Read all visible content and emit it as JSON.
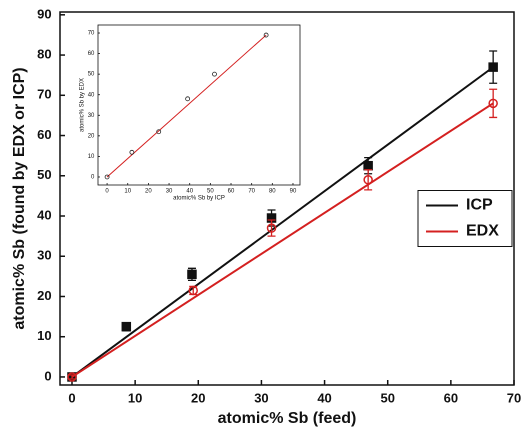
{
  "chart_data": [
    {
      "type": "scatter",
      "xlabel": "atomic% Sb (feed)",
      "ylabel": "atomic% Sb (found by EDX or ICP)",
      "xlim": [
        -1.9,
        70
      ],
      "ylim": [
        -2,
        90.7
      ],
      "xticks": [
        0,
        10,
        20,
        30,
        40,
        50,
        60,
        70
      ],
      "yticks": [
        0,
        10,
        20,
        30,
        40,
        50,
        60,
        70,
        80,
        90
      ],
      "legend": "right",
      "series": [
        {
          "name": "ICP",
          "color": "#111111",
          "marker": "square",
          "filled": true,
          "x": [
            0,
            8.6,
            19,
            31.6,
            46.9,
            66.7
          ],
          "values": [
            0,
            12.5,
            25.5,
            39.5,
            52.5,
            77
          ],
          "errors": [
            0.5,
            1,
            1.5,
            2,
            2,
            4
          ],
          "fit": {
            "x": [
              0,
              66.7
            ],
            "values": [
              0,
              77
            ]
          }
        },
        {
          "name": "EDX",
          "color": "#d42020",
          "marker": "circle",
          "filled": false,
          "x": [
            0,
            19.2,
            31.6,
            46.9,
            66.7
          ],
          "values": [
            0,
            21.5,
            37,
            49,
            68
          ],
          "errors": [
            0.5,
            1,
            2,
            2.5,
            3.5
          ],
          "fit": {
            "x": [
              0,
              66.7
            ],
            "values": [
              0,
              68
            ]
          }
        }
      ]
    },
    {
      "type": "scatter",
      "xlabel": "atomic% Sb by ICP",
      "ylabel": "atomic% Sb by EDX",
      "xlim": [
        -4.4,
        93.4
      ],
      "ylim": [
        -3.9,
        73.9
      ],
      "xticks": [
        0,
        10,
        20,
        30,
        40,
        50,
        60,
        70,
        80,
        90
      ],
      "yticks": [
        0,
        10,
        20,
        30,
        40,
        50,
        60,
        70
      ],
      "series": [
        {
          "color": "#222222",
          "marker": "circle",
          "filled": false,
          "line_color": "#d42020",
          "x": [
            0,
            12,
            25,
            39,
            52,
            77
          ],
          "values": [
            0,
            12,
            22,
            38,
            50,
            69
          ],
          "fit": {
            "x": [
              0,
              77
            ],
            "values": [
              0,
              69
            ]
          }
        }
      ]
    }
  ]
}
